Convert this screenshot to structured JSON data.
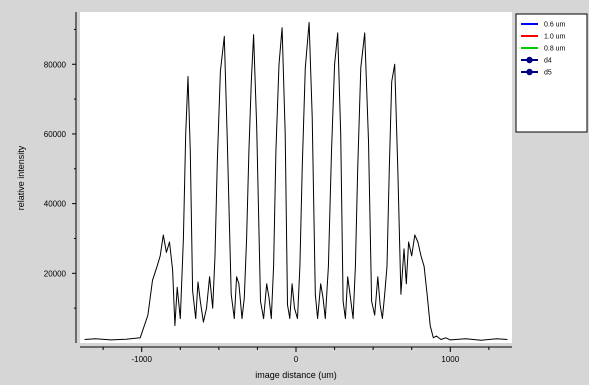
{
  "chart_data": {
    "type": "line",
    "title": "",
    "xlabel": "image distance (um)",
    "ylabel": "relative intensity",
    "xlim": [
      -1400,
      1400
    ],
    "ylim": [
      0,
      95000
    ],
    "xticks_major": [
      -1000,
      0,
      1000
    ],
    "xtick_labels": [
      "-1000",
      "0",
      "1000"
    ],
    "xticks_minor": [
      -1250,
      -750,
      -500,
      -250,
      250,
      500,
      750,
      1250
    ],
    "yticks_major": [
      20000,
      40000,
      60000,
      80000
    ],
    "ytick_labels": [
      "20000",
      "40000",
      "60000",
      "80000"
    ],
    "yticks_minor": [
      10000,
      30000,
      50000,
      70000,
      90000
    ],
    "grid": false,
    "legend_position": "top-right",
    "legend": [
      {
        "label": "0.6 um",
        "color": "#0000ff",
        "marker": false
      },
      {
        "label": "1.0 um",
        "color": "#ff0000",
        "marker": false
      },
      {
        "label": "0.8 um",
        "color": "#00cc00",
        "marker": false
      },
      {
        "label": "d4",
        "color": "#000080",
        "marker": true
      },
      {
        "label": "d5",
        "color": "#000080",
        "marker": true
      }
    ],
    "series": [
      {
        "color": "#000000",
        "x": [
          -1370,
          -1300,
          -1200,
          -1100,
          -1010,
          -960,
          -930,
          -900,
          -880,
          -860,
          -840,
          -820,
          -800,
          -785,
          -770,
          -750,
          -730,
          -715,
          -700,
          -685,
          -670,
          -650,
          -635,
          -620,
          -600,
          -580,
          -560,
          -540,
          -525,
          -510,
          -490,
          -465,
          -445,
          -420,
          -400,
          -385,
          -370,
          -350,
          -335,
          -320,
          -305,
          -290,
          -275,
          -255,
          -230,
          -210,
          -190,
          -175,
          -160,
          -145,
          -130,
          -110,
          -90,
          -70,
          -55,
          -40,
          -25,
          -10,
          10,
          25,
          40,
          60,
          85,
          105,
          125,
          140,
          160,
          175,
          190,
          210,
          230,
          250,
          270,
          290,
          305,
          320,
          335,
          350,
          370,
          385,
          400,
          420,
          445,
          470,
          490,
          510,
          530,
          545,
          560,
          575,
          590,
          605,
          620,
          640,
          660,
          680,
          700,
          715,
          730,
          750,
          770,
          790,
          810,
          830,
          850,
          870,
          890,
          910,
          940,
          970,
          1000,
          1100,
          1200,
          1300,
          1370
        ],
        "y": [
          1000,
          1200,
          900,
          1100,
          1500,
          8000,
          18000,
          22000,
          25000,
          31000,
          26000,
          29000,
          21000,
          5000,
          16000,
          7000,
          30000,
          60000,
          76500,
          55000,
          15000,
          7000,
          17500,
          12000,
          6000,
          10000,
          19000,
          10000,
          25000,
          52000,
          78000,
          88000,
          58000,
          14000,
          7000,
          19000,
          17000,
          7000,
          13000,
          30000,
          55000,
          75000,
          88500,
          62000,
          12000,
          7000,
          17000,
          13000,
          7000,
          22000,
          55000,
          80000,
          90500,
          60000,
          11000,
          7000,
          17000,
          10000,
          7000,
          22000,
          50000,
          79000,
          92000,
          65000,
          14000,
          7000,
          17000,
          13000,
          7000,
          22000,
          55000,
          80000,
          89000,
          60000,
          12000,
          7000,
          19000,
          14000,
          7000,
          22000,
          50000,
          79000,
          89000,
          58000,
          12000,
          8000,
          19000,
          11000,
          7000,
          14000,
          22000,
          50000,
          75000,
          80000,
          50000,
          14000,
          27000,
          17000,
          29000,
          25000,
          31000,
          29000,
          25000,
          22000,
          14000,
          5000,
          1500,
          2000,
          1000,
          1500,
          900,
          1200,
          800,
          1200,
          1000
        ]
      }
    ]
  }
}
